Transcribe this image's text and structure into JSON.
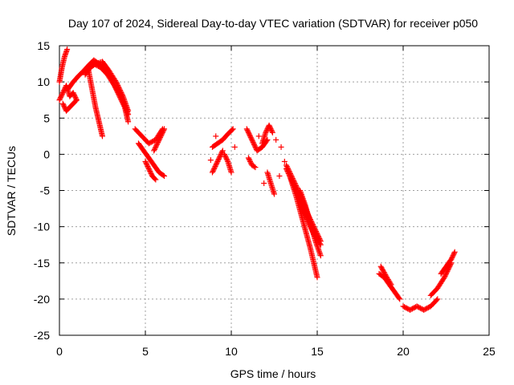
{
  "chart_data": {
    "type": "scatter",
    "title": "Day 107 of 2024, Sidereal Day-to-day VTEC variation (SDTVAR) for receiver p050",
    "xlabel": "GPS time / hours",
    "ylabel": "SDTVAR / TECUs",
    "xlim": [
      0,
      25
    ],
    "ylim": [
      -25,
      15
    ],
    "xticks": [
      "0",
      "5",
      "10",
      "15",
      "20",
      "25"
    ],
    "yticks": [
      "15",
      "10",
      "5",
      "0",
      "-5",
      "-10",
      "-15",
      "-20",
      "-25"
    ],
    "grid": true,
    "marker": "plus",
    "color": "#ff0000",
    "tracks": [
      {
        "x": [
          0.0,
          0.2,
          0.4,
          0.6,
          0.8,
          1.0
        ],
        "y": [
          7.5,
          8.5,
          9.5,
          8.0,
          8.5,
          7.5
        ]
      },
      {
        "x": [
          0.0,
          0.15,
          0.3,
          0.45
        ],
        "y": [
          10.0,
          12.0,
          13.5,
          14.5
        ]
      },
      {
        "x": [
          0.2,
          0.4,
          0.6,
          0.8,
          1.0
        ],
        "y": [
          7.0,
          6.0,
          6.5,
          7.0,
          7.5
        ]
      },
      {
        "x": [
          0.5,
          0.8,
          1.1,
          1.4,
          1.7,
          2.0,
          2.3,
          2.6,
          3.0,
          3.4,
          3.8,
          4.0
        ],
        "y": [
          9.0,
          10.0,
          10.8,
          11.5,
          12.3,
          13.0,
          12.5,
          11.8,
          10.5,
          8.5,
          6.5,
          4.5
        ]
      },
      {
        "x": [
          1.5,
          1.8,
          2.1,
          2.5,
          2.9,
          3.3,
          3.7,
          4.0
        ],
        "y": [
          11.0,
          12.0,
          12.5,
          12.8,
          11.5,
          10.0,
          8.0,
          6.0
        ]
      },
      {
        "x": [
          1.7,
          1.9,
          2.1,
          2.3,
          2.5
        ],
        "y": [
          11.5,
          9.0,
          6.5,
          4.5,
          2.5
        ]
      },
      {
        "x": [
          2.0,
          2.4,
          2.8,
          3.2,
          3.6,
          4.0
        ],
        "y": [
          12.5,
          12.0,
          11.0,
          9.5,
          8.0,
          5.5
        ]
      },
      {
        "x": [
          4.4,
          4.8,
          5.2,
          5.6,
          6.0
        ],
        "y": [
          3.5,
          2.5,
          1.5,
          2.0,
          3.5
        ]
      },
      {
        "x": [
          4.6,
          4.9,
          5.2,
          5.5,
          5.8,
          6.1
        ],
        "y": [
          1.5,
          0.5,
          -0.5,
          -1.5,
          -2.5,
          -3.0
        ]
      },
      {
        "x": [
          5.0,
          5.2,
          5.4,
          5.6
        ],
        "y": [
          -1.0,
          -2.0,
          -3.0,
          -3.5
        ]
      },
      {
        "x": [
          5.5,
          5.8,
          6.1
        ],
        "y": [
          0.5,
          2.0,
          3.5
        ]
      },
      {
        "x": [
          8.9,
          9.2,
          9.5,
          9.8,
          10.1
        ],
        "y": [
          1.0,
          1.5,
          2.0,
          2.8,
          3.5
        ]
      },
      {
        "x": [
          8.9,
          9.1,
          9.3,
          9.5
        ],
        "y": [
          -2.5,
          -1.5,
          -0.5,
          0.5
        ]
      },
      {
        "x": [
          9.6,
          9.8,
          10.0
        ],
        "y": [
          0.0,
          -1.0,
          -2.5
        ]
      },
      {
        "x": [
          10.9,
          11.2,
          11.5,
          11.8,
          12.1
        ],
        "y": [
          3.5,
          2.0,
          0.5,
          1.0,
          2.0
        ]
      },
      {
        "x": [
          11.0,
          11.2,
          11.4
        ],
        "y": [
          -0.5,
          -1.5,
          -1.8
        ]
      },
      {
        "x": [
          11.8,
          12.0,
          12.2,
          12.4
        ],
        "y": [
          1.5,
          3.0,
          4.0,
          3.0
        ]
      },
      {
        "x": [
          12.1,
          12.3,
          12.5
        ],
        "y": [
          -2.5,
          -4.0,
          -5.5
        ]
      },
      {
        "x": [
          13.2,
          13.6,
          14.0,
          14.4,
          14.8,
          15.2
        ],
        "y": [
          -2.0,
          -4.0,
          -6.5,
          -9.0,
          -11.0,
          -12.5
        ]
      },
      {
        "x": [
          13.2,
          13.6,
          14.0,
          14.4,
          14.8,
          15.2
        ],
        "y": [
          -1.5,
          -3.5,
          -5.5,
          -8.0,
          -10.0,
          -12.0
        ]
      },
      {
        "x": [
          13.4,
          13.8,
          14.2,
          14.6,
          15.0
        ],
        "y": [
          -3.0,
          -6.0,
          -9.5,
          -13.0,
          -17.0
        ]
      },
      {
        "x": [
          14.0,
          14.3,
          14.6,
          14.9,
          15.2
        ],
        "y": [
          -5.0,
          -7.0,
          -9.5,
          -12.0,
          -14.0
        ]
      },
      {
        "x": [
          14.2,
          14.5,
          14.8
        ],
        "y": [
          -7.5,
          -9.0,
          -10.5
        ]
      },
      {
        "x": [
          18.6,
          18.9,
          19.2,
          19.5,
          19.8
        ],
        "y": [
          -16.5,
          -17.0,
          -18.0,
          -19.0,
          -20.0
        ]
      },
      {
        "x": [
          18.7,
          19.0,
          19.3
        ],
        "y": [
          -15.5,
          -16.8,
          -18.0
        ]
      },
      {
        "x": [
          20.0,
          20.4,
          20.8,
          21.2,
          21.6,
          22.0
        ],
        "y": [
          -21.0,
          -21.5,
          -21.0,
          -21.5,
          -21.0,
          -20.0
        ]
      },
      {
        "x": [
          21.6,
          22.0,
          22.4,
          22.8
        ],
        "y": [
          -19.5,
          -18.5,
          -17.0,
          -15.0
        ]
      },
      {
        "x": [
          22.2,
          22.5,
          22.8,
          23.0
        ],
        "y": [
          -16.5,
          -15.5,
          -14.5,
          -13.5
        ]
      }
    ],
    "scattered_points": [
      {
        "x": 12.6,
        "y": 2.0
      },
      {
        "x": 12.9,
        "y": 1.0
      },
      {
        "x": 11.6,
        "y": 2.5
      },
      {
        "x": 11.9,
        "y": -4.0
      },
      {
        "x": 12.8,
        "y": -3.0
      },
      {
        "x": 13.1,
        "y": -1.0
      },
      {
        "x": 10.2,
        "y": 1.0
      },
      {
        "x": 9.1,
        "y": 2.5
      },
      {
        "x": 8.8,
        "y": -0.8
      }
    ]
  }
}
